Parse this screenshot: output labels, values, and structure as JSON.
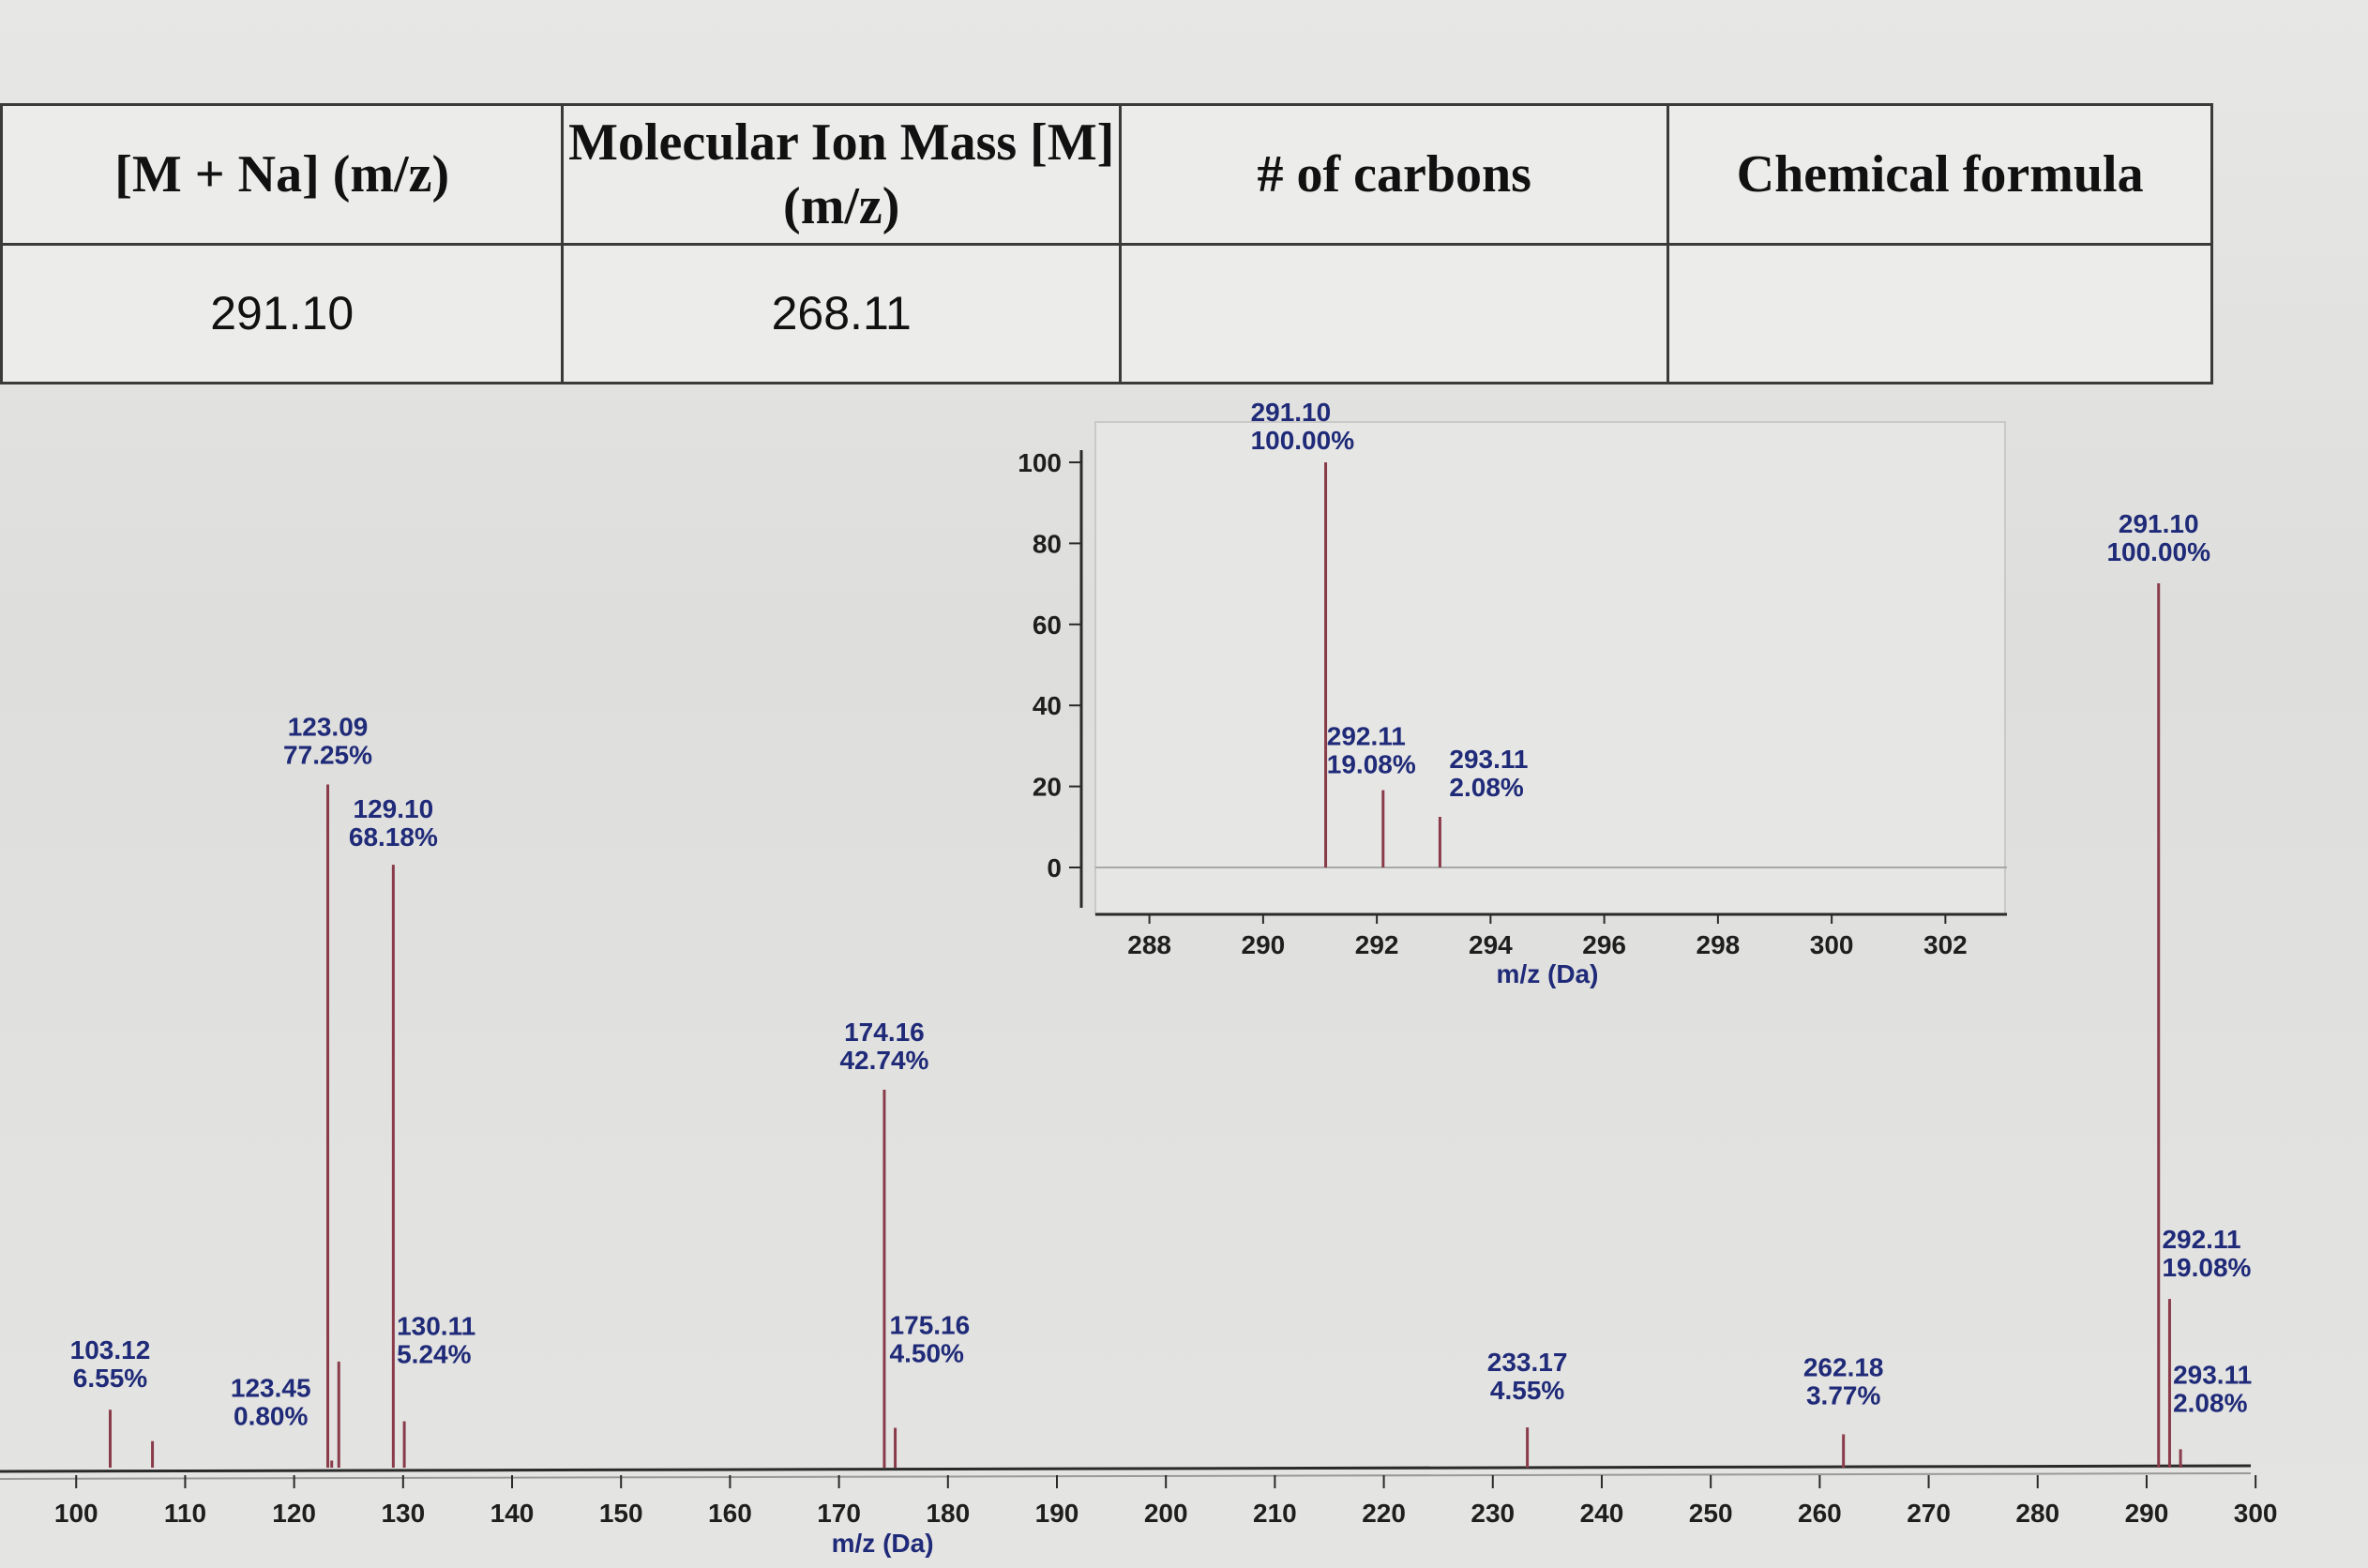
{
  "table": {
    "headers": [
      "[M + Na] (m/z)",
      "Molecular Ion Mass [M] (m/z)",
      "# of carbons",
      "Chemical formula"
    ],
    "row": [
      "291.10",
      "268.11",
      "",
      ""
    ]
  },
  "chart_data": [
    {
      "type": "bar",
      "subtype": "mass-spectrum-stick",
      "xlabel": "m/z (Da)",
      "ylabel": "",
      "xlim": [
        98,
        303
      ],
      "ylim": [
        0,
        100
      ],
      "xticks": [
        100,
        110,
        120,
        130,
        140,
        150,
        160,
        170,
        180,
        190,
        200,
        210,
        220,
        230,
        240,
        250,
        260,
        270,
        280,
        290,
        300
      ],
      "peaks": [
        {
          "mz": 103.12,
          "intensity": 6.55,
          "label_mz": "103.12",
          "label_pct": "6.55%"
        },
        {
          "mz": 107.0,
          "intensity": 3.0,
          "label_mz": "",
          "label_pct": ""
        },
        {
          "mz": 123.09,
          "intensity": 77.25,
          "label_mz": "123.09",
          "label_pct": "77.25%"
        },
        {
          "mz": 123.45,
          "intensity": 0.8,
          "label_mz": "123.45",
          "label_pct": "0.80%"
        },
        {
          "mz": 124.1,
          "intensity": 12.0,
          "label_mz": "",
          "label_pct": ""
        },
        {
          "mz": 129.1,
          "intensity": 68.18,
          "label_mz": "129.10",
          "label_pct": "68.18%"
        },
        {
          "mz": 130.11,
          "intensity": 5.24,
          "label_mz": "130.11",
          "label_pct": "5.24%"
        },
        {
          "mz": 174.16,
          "intensity": 42.74,
          "label_mz": "174.16",
          "label_pct": "42.74%"
        },
        {
          "mz": 175.16,
          "intensity": 4.5,
          "label_mz": "175.16",
          "label_pct": "4.50%"
        },
        {
          "mz": 233.17,
          "intensity": 4.55,
          "label_mz": "233.17",
          "label_pct": "4.55%"
        },
        {
          "mz": 262.18,
          "intensity": 3.77,
          "label_mz": "262.18",
          "label_pct": "3.77%"
        },
        {
          "mz": 291.1,
          "intensity": 100.0,
          "label_mz": "291.10",
          "label_pct": "100.00%"
        },
        {
          "mz": 292.11,
          "intensity": 19.08,
          "label_mz": "292.11",
          "label_pct": "19.08%"
        },
        {
          "mz": 293.11,
          "intensity": 2.08,
          "label_mz": "293.11",
          "label_pct": "2.08%"
        }
      ]
    },
    {
      "type": "bar",
      "subtype": "mass-spectrum-stick-inset",
      "xlabel": "m/z (Da)",
      "ylabel": "",
      "xlim": [
        287,
        303
      ],
      "ylim": [
        0,
        100
      ],
      "xticks": [
        288,
        290,
        292,
        294,
        296,
        298,
        300,
        302
      ],
      "yticks": [
        0,
        20,
        40,
        60,
        80,
        100
      ],
      "peaks": [
        {
          "mz": 291.1,
          "intensity": 100.0,
          "label_mz": "291.10",
          "label_pct": "100.00%"
        },
        {
          "mz": 292.11,
          "intensity": 19.08,
          "label_mz": "292.11",
          "label_pct": "19.08%"
        },
        {
          "mz": 293.11,
          "intensity": 2.08,
          "label_mz": "293.11",
          "label_pct": "2.08%"
        }
      ]
    }
  ],
  "colors": {
    "peak_line": "#8a3b4a",
    "label_text": "#1f2a78",
    "axis": "#2a2a2a"
  }
}
